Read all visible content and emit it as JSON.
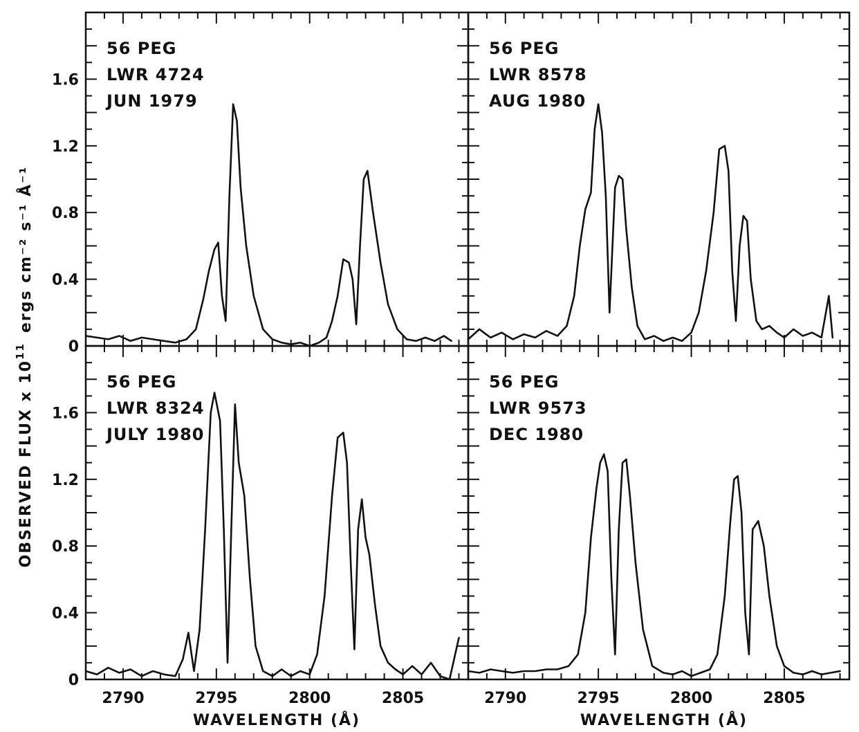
{
  "chart_data": {
    "type": "line",
    "layout": "2x2 panels",
    "xlabel": "WAVELENGTH (Å)",
    "ylabel_main": "OBSERVED FLUX x 10",
    "ylabel_exp": "11",
    "ylabel_units": "ergs cm⁻² s⁻¹ Å⁻¹",
    "xlim": [
      2788,
      2808.5
    ],
    "ylim": [
      0,
      2.0
    ],
    "xticks": [
      {
        "value": 2790,
        "label": "2790"
      },
      {
        "value": 2795,
        "label": "2795"
      },
      {
        "value": 2800,
        "label": "2800"
      },
      {
        "value": 2805,
        "label": "2805"
      }
    ],
    "yticks": [
      {
        "value": 0,
        "label": "0"
      },
      {
        "value": 0.4,
        "label": "0.4"
      },
      {
        "value": 0.8,
        "label": "0.8"
      },
      {
        "value": 1.2,
        "label": "1.2"
      },
      {
        "value": 1.6,
        "label": "1.6"
      }
    ],
    "panels": [
      {
        "position": "top-left",
        "labels": [
          "56 PEG",
          "LWR 4724",
          "JUN 1979"
        ],
        "series": [
          {
            "x": [
              2788.0,
              2788.6,
              2789.2,
              2789.8,
              2790.4,
              2791.0,
              2791.6,
              2792.2,
              2792.8,
              2793.4,
              2793.9,
              2794.3,
              2794.6,
              2794.9,
              2795.1,
              2795.3,
              2795.5,
              2795.7,
              2795.9,
              2796.1,
              2796.3,
              2796.6,
              2797.0,
              2797.5,
              2798.0,
              2798.5,
              2799.0,
              2799.5,
              2800.0,
              2800.5,
              2800.9,
              2801.2,
              2801.5,
              2801.8,
              2802.1,
              2802.3,
              2802.5,
              2802.7,
              2802.9,
              2803.1,
              2803.4,
              2803.8,
              2804.2,
              2804.7,
              2805.2,
              2805.7,
              2806.2,
              2806.7,
              2807.2,
              2807.6
            ],
            "y": [
              0.06,
              0.05,
              0.04,
              0.06,
              0.03,
              0.05,
              0.04,
              0.03,
              0.02,
              0.04,
              0.1,
              0.28,
              0.45,
              0.58,
              0.62,
              0.3,
              0.15,
              0.9,
              1.45,
              1.35,
              0.95,
              0.6,
              0.3,
              0.1,
              0.04,
              0.02,
              0.01,
              0.02,
              0.0,
              0.02,
              0.05,
              0.15,
              0.3,
              0.52,
              0.5,
              0.4,
              0.13,
              0.6,
              1.0,
              1.05,
              0.8,
              0.5,
              0.25,
              0.1,
              0.04,
              0.03,
              0.05,
              0.03,
              0.06,
              0.03
            ]
          }
        ]
      },
      {
        "position": "top-right",
        "labels": [
          "56 PEG",
          "LWR 8578",
          "AUG 1980"
        ],
        "series": [
          {
            "x": [
              2788.0,
              2788.6,
              2789.2,
              2789.8,
              2790.4,
              2791.0,
              2791.6,
              2792.2,
              2792.8,
              2793.3,
              2793.7,
              2794.0,
              2794.3,
              2794.6,
              2794.8,
              2795.0,
              2795.2,
              2795.4,
              2795.6,
              2795.9,
              2796.1,
              2796.3,
              2796.5,
              2796.8,
              2797.1,
              2797.5,
              2798.0,
              2798.5,
              2799.0,
              2799.5,
              2800.0,
              2800.4,
              2800.8,
              2801.2,
              2801.5,
              2801.8,
              2802.0,
              2802.2,
              2802.4,
              2802.6,
              2802.8,
              2803.0,
              2803.2,
              2803.5,
              2803.8,
              2804.2,
              2804.6,
              2805.0,
              2805.5,
              2806.0,
              2806.5,
              2807.0,
              2807.4,
              2807.6
            ],
            "y": [
              0.04,
              0.1,
              0.05,
              0.08,
              0.04,
              0.07,
              0.05,
              0.09,
              0.06,
              0.12,
              0.3,
              0.6,
              0.82,
              0.92,
              1.3,
              1.45,
              1.28,
              0.9,
              0.2,
              0.95,
              1.02,
              1.0,
              0.7,
              0.35,
              0.12,
              0.04,
              0.06,
              0.03,
              0.05,
              0.03,
              0.08,
              0.2,
              0.45,
              0.8,
              1.18,
              1.2,
              1.05,
              0.45,
              0.15,
              0.6,
              0.78,
              0.75,
              0.4,
              0.15,
              0.1,
              0.12,
              0.08,
              0.05,
              0.1,
              0.06,
              0.08,
              0.05,
              0.3,
              0.05
            ]
          }
        ]
      },
      {
        "position": "bottom-left",
        "labels": [
          "56 PEG",
          "LWR 8324",
          "JULY 1980"
        ],
        "series": [
          {
            "x": [
              2788.0,
              2788.6,
              2789.2,
              2789.8,
              2790.4,
              2791.0,
              2791.6,
              2792.2,
              2792.8,
              2793.2,
              2793.5,
              2793.8,
              2794.1,
              2794.4,
              2794.7,
              2794.9,
              2795.2,
              2795.4,
              2795.6,
              2795.8,
              2796.0,
              2796.2,
              2796.5,
              2796.8,
              2797.1,
              2797.5,
              2798.0,
              2798.5,
              2799.0,
              2799.5,
              2800.0,
              2800.4,
              2800.8,
              2801.2,
              2801.5,
              2801.8,
              2802.0,
              2802.2,
              2802.4,
              2802.6,
              2802.8,
              2803.0,
              2803.2,
              2803.5,
              2803.8,
              2804.2,
              2804.6,
              2805.0,
              2805.5,
              2806.0,
              2806.5,
              2807.0,
              2807.5,
              2808.0
            ],
            "y": [
              0.05,
              0.03,
              0.07,
              0.04,
              0.06,
              0.02,
              0.05,
              0.03,
              0.02,
              0.12,
              0.28,
              0.05,
              0.3,
              0.9,
              1.6,
              1.72,
              1.55,
              0.9,
              0.1,
              0.9,
              1.65,
              1.3,
              1.1,
              0.6,
              0.2,
              0.05,
              0.02,
              0.06,
              0.02,
              0.05,
              0.03,
              0.15,
              0.5,
              1.1,
              1.45,
              1.48,
              1.3,
              0.7,
              0.18,
              0.9,
              1.08,
              0.85,
              0.75,
              0.45,
              0.2,
              0.1,
              0.06,
              0.03,
              0.08,
              0.03,
              0.1,
              0.02,
              0.0,
              0.25
            ]
          }
        ]
      },
      {
        "position": "bottom-right",
        "labels": [
          "56 PEG",
          "LWR 9573",
          "DEC 1980"
        ],
        "series": [
          {
            "x": [
              2788.0,
              2788.6,
              2789.2,
              2789.8,
              2790.4,
              2791.0,
              2791.6,
              2792.2,
              2792.8,
              2793.4,
              2793.9,
              2794.3,
              2794.6,
              2794.9,
              2795.1,
              2795.3,
              2795.5,
              2795.7,
              2795.9,
              2796.1,
              2796.3,
              2796.5,
              2796.7,
              2797.0,
              2797.4,
              2797.9,
              2798.5,
              2799.0,
              2799.5,
              2800.0,
              2800.5,
              2801.0,
              2801.4,
              2801.8,
              2802.1,
              2802.3,
              2802.5,
              2802.7,
              2802.9,
              2803.1,
              2803.3,
              2803.6,
              2803.9,
              2804.2,
              2804.6,
              2805.0,
              2805.5,
              2806.0,
              2806.5,
              2807.0,
              2807.5,
              2808.0
            ],
            "y": [
              0.05,
              0.04,
              0.06,
              0.05,
              0.04,
              0.05,
              0.05,
              0.06,
              0.06,
              0.08,
              0.15,
              0.4,
              0.85,
              1.15,
              1.3,
              1.35,
              1.25,
              0.6,
              0.15,
              0.9,
              1.3,
              1.32,
              1.1,
              0.7,
              0.3,
              0.08,
              0.04,
              0.03,
              0.05,
              0.02,
              0.04,
              0.06,
              0.15,
              0.5,
              0.95,
              1.2,
              1.22,
              1.0,
              0.4,
              0.15,
              0.9,
              0.95,
              0.8,
              0.5,
              0.2,
              0.08,
              0.04,
              0.03,
              0.05,
              0.03,
              0.04,
              0.05
            ]
          }
        ]
      }
    ]
  }
}
